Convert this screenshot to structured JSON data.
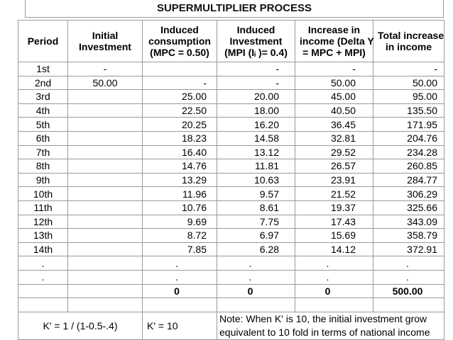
{
  "header": {
    "title": "SUPERMULTIPLIER PROCESS"
  },
  "table": {
    "columns": [
      [
        "Period"
      ],
      [
        "Initial",
        "Investment"
      ],
      [
        "Induced",
        "consumption",
        "(MPC = 0.50)"
      ],
      [
        "Induced",
        "Investment",
        "(MPI (Iᵢ )= 0.4)"
      ],
      [
        "Increase in",
        "income (Delta Y",
        "= MPC + MPI)"
      ],
      [
        "Total increase",
        "in income"
      ]
    ],
    "rows": [
      [
        "1st",
        "-",
        null,
        "-",
        "-",
        "-"
      ],
      [
        "2nd",
        "50.00",
        "-",
        "-",
        "50.00",
        "50.00"
      ],
      [
        "3rd",
        null,
        "25.00",
        "20.00",
        "45.00",
        "95.00"
      ],
      [
        "4th",
        null,
        "22.50",
        "18.00",
        "40.50",
        "135.50"
      ],
      [
        "5th",
        null,
        "20.25",
        "16.20",
        "36.45",
        "171.95"
      ],
      [
        "6th",
        null,
        "18.23",
        "14.58",
        "32.81",
        "204.76"
      ],
      [
        "7th",
        null,
        "16.40",
        "13.12",
        "29.52",
        "234.28"
      ],
      [
        "8th",
        null,
        "14.76",
        "11.81",
        "26.57",
        "260.85"
      ],
      [
        "9th",
        null,
        "13.29",
        "10.63",
        "23.91",
        "284.77"
      ],
      [
        "10th",
        null,
        "11.96",
        "9.57",
        "21.52",
        "306.29"
      ],
      [
        "11th",
        null,
        "10.76",
        "8.61",
        "19.37",
        "325.66"
      ],
      [
        "12th",
        null,
        "9.69",
        "7.75",
        "17.43",
        "343.09"
      ],
      [
        "13th",
        null,
        "8.72",
        "6.97",
        "15.69",
        "358.79"
      ],
      [
        "14th",
        null,
        "7.85",
        "6.28",
        "14.12",
        "372.91"
      ],
      [
        ".",
        null,
        ".",
        ".",
        ".",
        "."
      ],
      [
        ".",
        null,
        ".",
        ".",
        ".",
        "."
      ],
      [
        null,
        null,
        "0",
        "0",
        "0",
        "500.00"
      ]
    ],
    "footer": {
      "formula": "K' = 1 / (1-0.5-.4)",
      "k_value": "K' = 10",
      "note": [
        "Note: When K' is 10, the initial investment grow",
        "equivalent to 10 fold in terms of national income"
      ]
    }
  }
}
